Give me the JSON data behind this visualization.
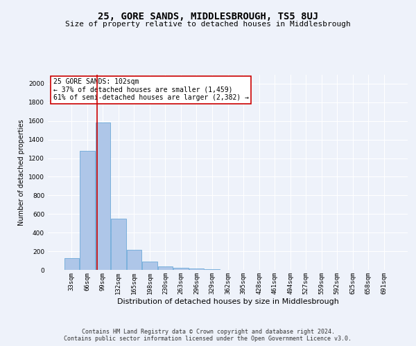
{
  "title": "25, GORE SANDS, MIDDLESBROUGH, TS5 8UJ",
  "subtitle": "Size of property relative to detached houses in Middlesbrough",
  "xlabel": "Distribution of detached houses by size in Middlesbrough",
  "ylabel": "Number of detached properties",
  "categories": [
    "33sqm",
    "66sqm",
    "99sqm",
    "132sqm",
    "165sqm",
    "198sqm",
    "230sqm",
    "263sqm",
    "296sqm",
    "329sqm",
    "362sqm",
    "395sqm",
    "428sqm",
    "461sqm",
    "494sqm",
    "527sqm",
    "559sqm",
    "592sqm",
    "625sqm",
    "658sqm",
    "691sqm"
  ],
  "values": [
    130,
    1280,
    1580,
    550,
    215,
    90,
    40,
    25,
    15,
    5,
    2,
    0,
    0,
    0,
    0,
    0,
    0,
    0,
    0,
    0,
    0
  ],
  "bar_color": "#aec6e8",
  "bar_edge_color": "#5a9fd4",
  "vline_color": "#cc0000",
  "annotation_text": "25 GORE SANDS: 102sqm\n← 37% of detached houses are smaller (1,459)\n61% of semi-detached houses are larger (2,382) →",
  "annotation_box_color": "#ffffff",
  "annotation_box_edge": "#cc0000",
  "ylim": [
    0,
    2100
  ],
  "yticks": [
    0,
    200,
    400,
    600,
    800,
    1000,
    1200,
    1400,
    1600,
    1800,
    2000
  ],
  "footer": "Contains HM Land Registry data © Crown copyright and database right 2024.\nContains public sector information licensed under the Open Government Licence v3.0.",
  "background_color": "#eef2fa",
  "grid_color": "#ffffff",
  "title_fontsize": 10,
  "subtitle_fontsize": 8,
  "ylabel_fontsize": 7,
  "xlabel_fontsize": 8,
  "tick_fontsize": 6.5,
  "annotation_fontsize": 7,
  "footer_fontsize": 6
}
